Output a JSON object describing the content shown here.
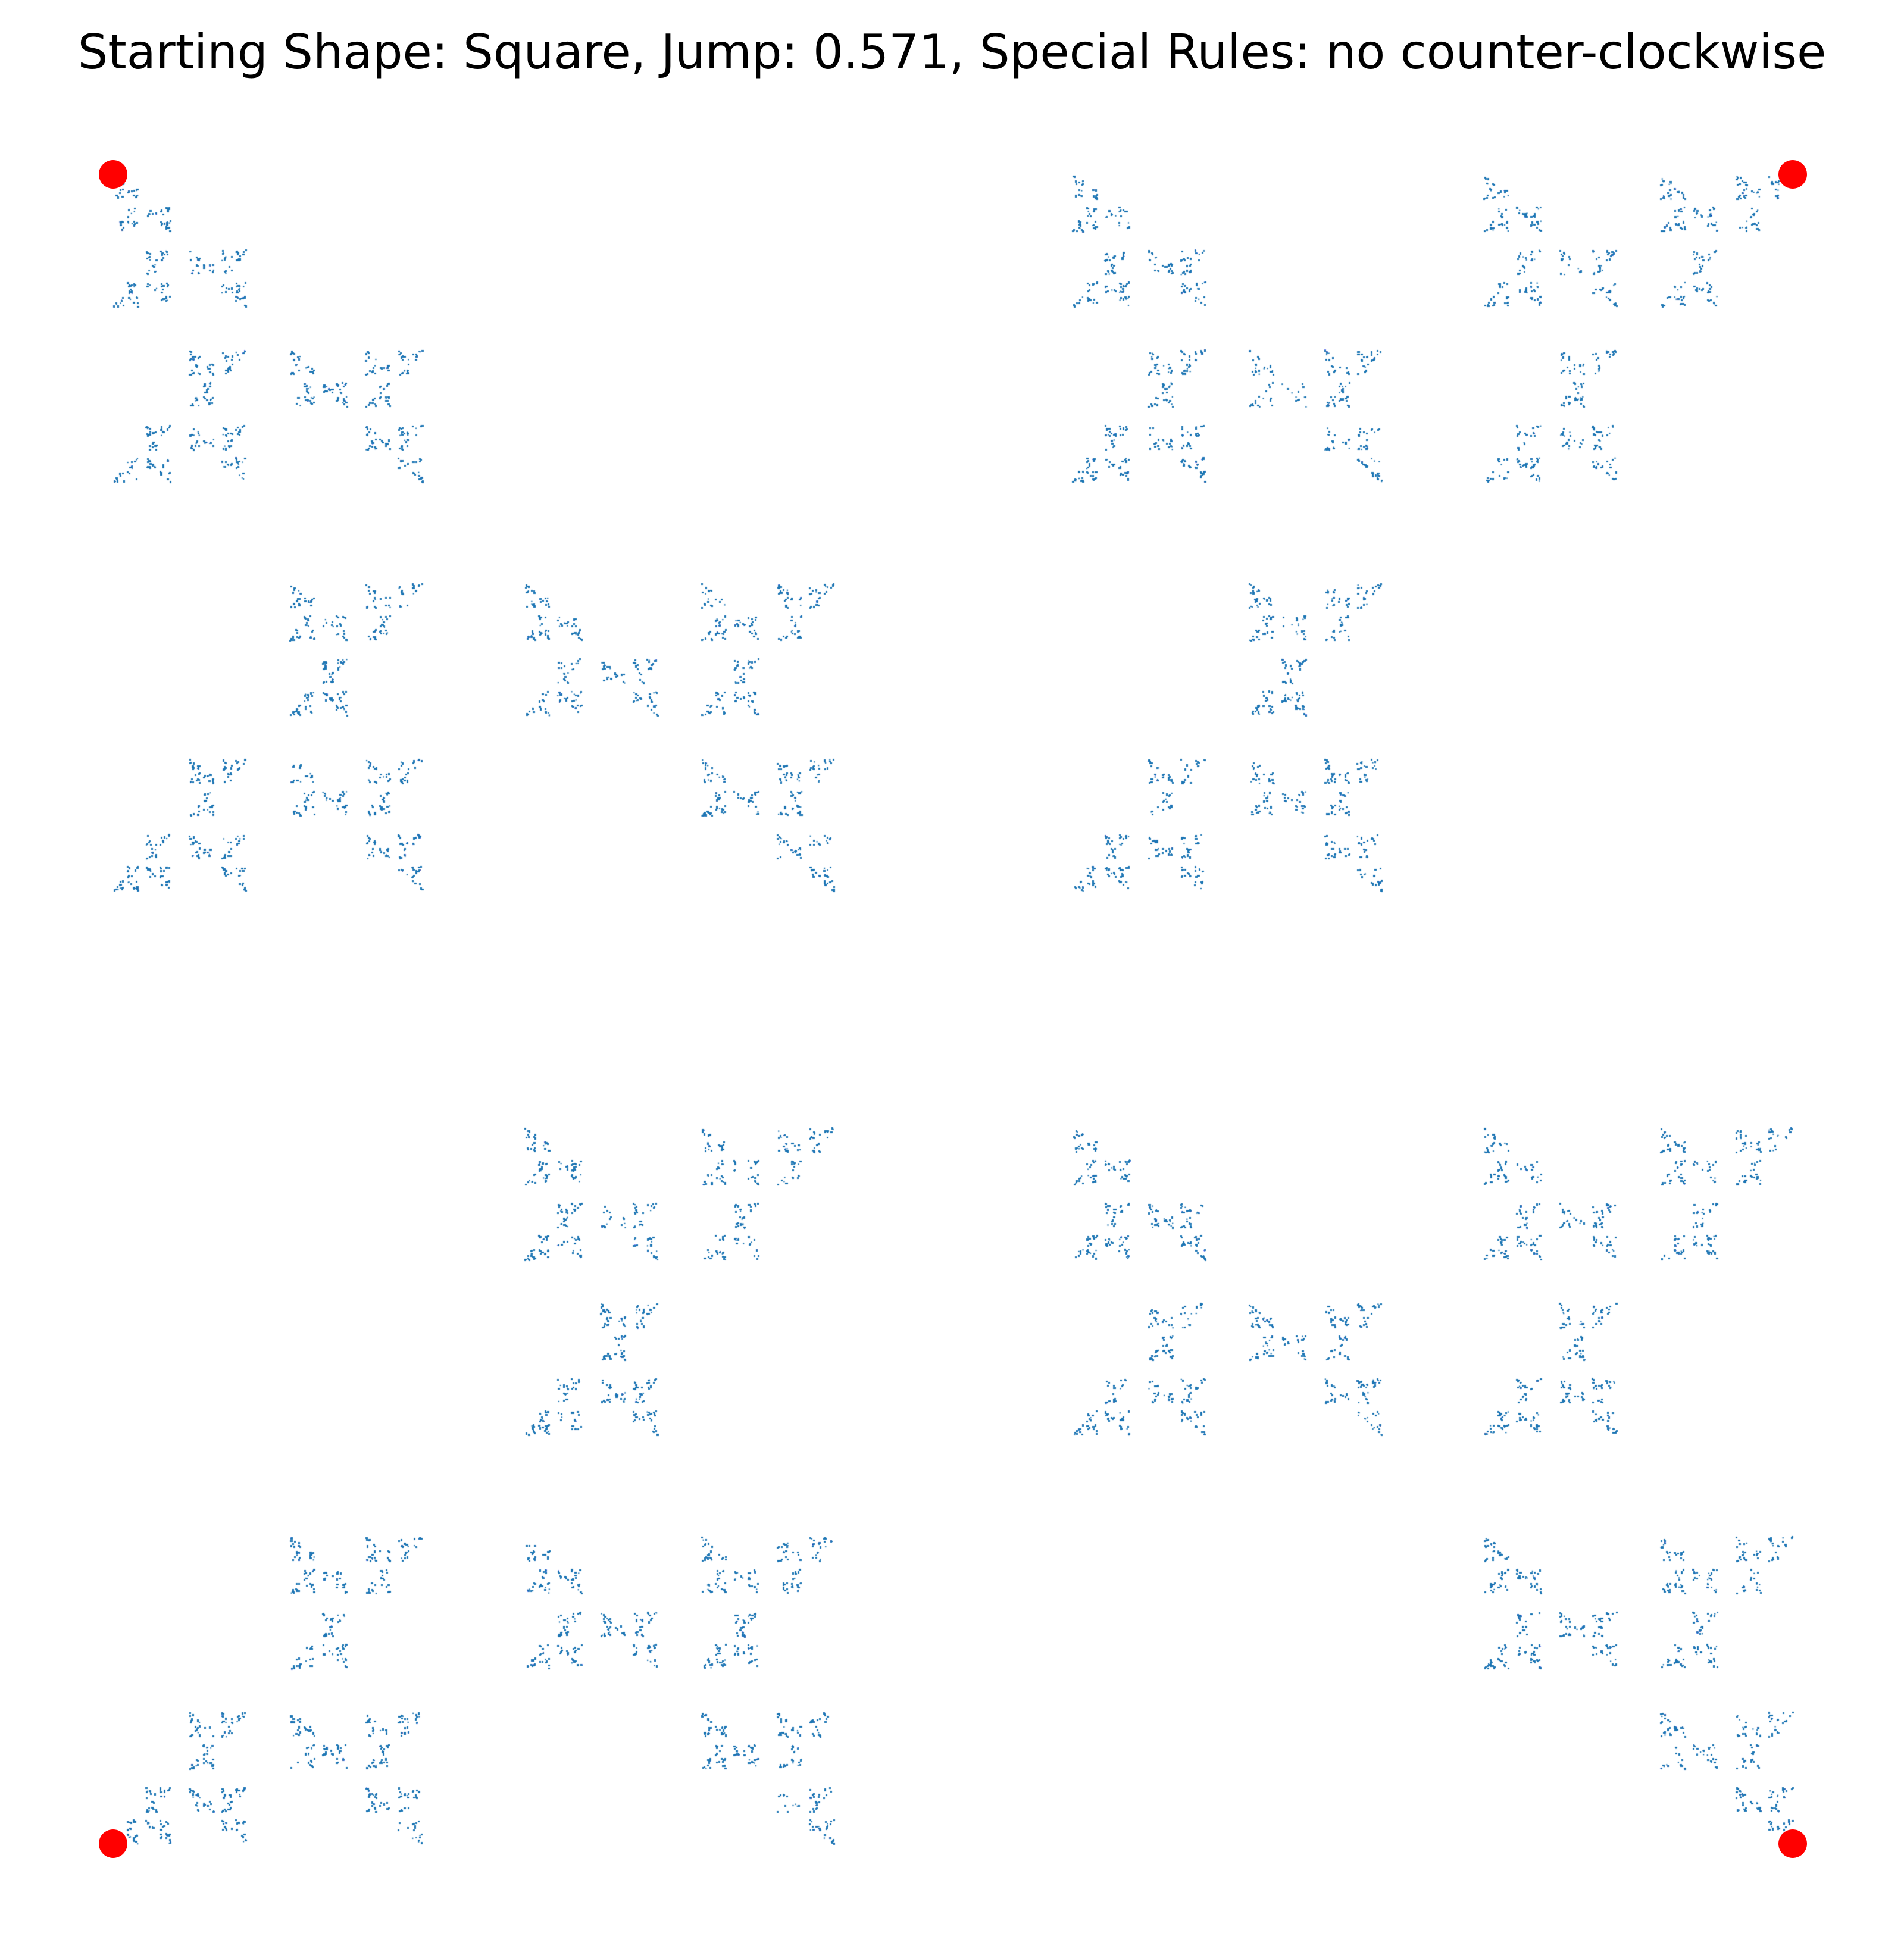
{
  "figure": {
    "title": "Starting Shape: Square, Jump: 0.571, Special Rules: no counter-clockwise"
  },
  "chart_data": {
    "type": "scatter",
    "title": "Starting Shape: Square, Jump: 0.571, Special Rules: no counter-clockwise",
    "xlabel": "",
    "ylabel": "",
    "axes_visible": false,
    "grid": false,
    "series": [
      {
        "role": "vertices",
        "points": [
          [
            0,
            0
          ],
          [
            1,
            0
          ],
          [
            1,
            1
          ],
          [
            0,
            1
          ]
        ],
        "color": "#ff0000",
        "marker": "circle"
      },
      {
        "role": "chaos-game-points",
        "color": "#1f77b4",
        "marker": "dot"
      }
    ],
    "starting_shape": "Square",
    "jump": 0.571,
    "special_rule": "no counter-clockwise",
    "xlim": [
      0,
      1
    ],
    "ylim": [
      0,
      1
    ]
  },
  "colors": {
    "points": "#1f77b4",
    "vertices": "#ff0000",
    "background": "#ffffff",
    "title": "#000000"
  }
}
